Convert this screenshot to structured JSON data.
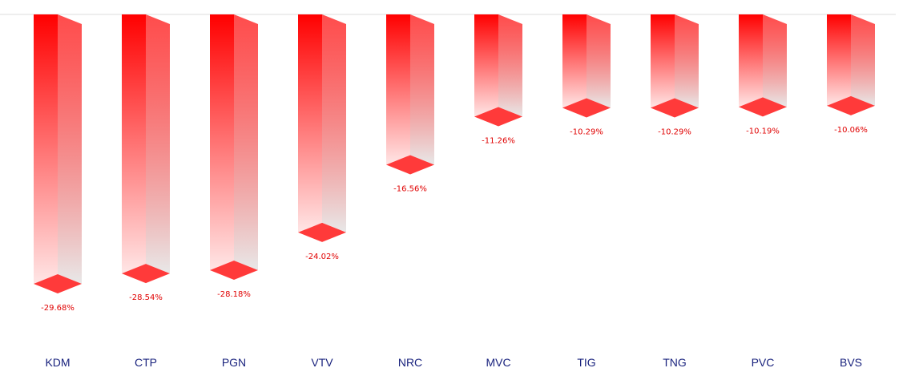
{
  "chart_data": {
    "type": "bar3d",
    "color": "#ff0000",
    "categories": [
      "KDM",
      "CTP",
      "PGN",
      "VTV",
      "NRC",
      "MVC",
      "TIG",
      "TNG",
      "PVC",
      "BVS"
    ],
    "values": [
      -29.68,
      -28.54,
      -28.18,
      -24.02,
      -16.56,
      -11.26,
      -10.29,
      -10.29,
      -10.19,
      -10.06
    ],
    "value_labels": [
      "-29.68%",
      "-28.54%",
      "-28.18%",
      "-24.02%",
      "-16.56%",
      "-11.26%",
      "-10.29%",
      "-10.29%",
      "-10.19%",
      "-10.06%"
    ]
  }
}
